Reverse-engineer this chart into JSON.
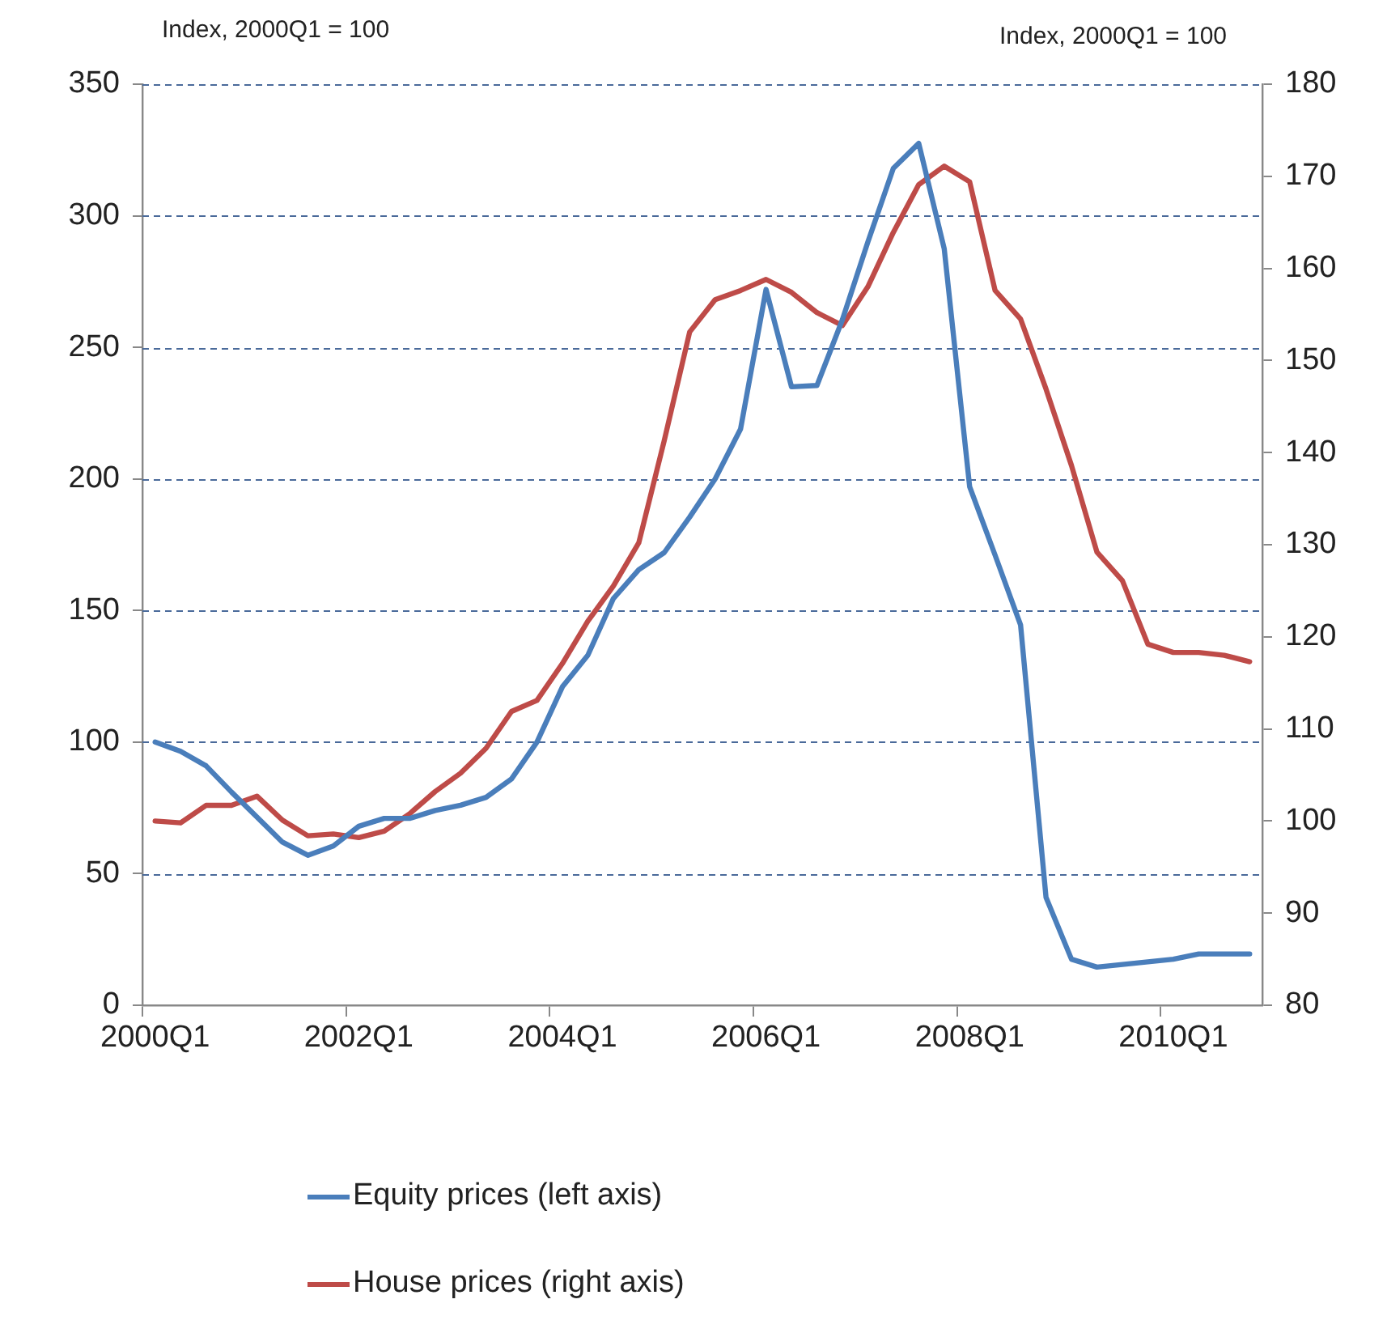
{
  "chart_data": {
    "type": "line",
    "ylabel": "Index, 2000Q1 = 100",
    "y2label": "Index, 2000Q1 = 100",
    "categories": [
      "2000Q1",
      null,
      null,
      null,
      null,
      null,
      null,
      null,
      "2002Q1",
      null,
      null,
      null,
      null,
      null,
      null,
      null,
      "2004Q1",
      null,
      null,
      null,
      null,
      null,
      null,
      null,
      "2006Q1",
      null,
      null,
      null,
      null,
      null,
      null,
      null,
      "2008Q1",
      null,
      null,
      null,
      null,
      null,
      null,
      null,
      "2010Q1",
      null,
      null,
      null
    ],
    "series": [
      {
        "name": "Equity prices (left axis)",
        "color": "#4a7ebb",
        "values": [
          100,
          96.5,
          91,
          81,
          71.5,
          62,
          57,
          60.5,
          68,
          71,
          71,
          74,
          76,
          79,
          86,
          100,
          121,
          133,
          154.5,
          165.5,
          172,
          185.5,
          200,
          219,
          272,
          235,
          235.5,
          260.5,
          290,
          318,
          327.5,
          287.5,
          197,
          171,
          144.5,
          41,
          17.5,
          14.5,
          15.5,
          16.5,
          17.5,
          19.5,
          19.5,
          19.5
        ]
      },
      {
        "name": "House prices (right axis)",
        "color": "#be4b48",
        "axis": "y2",
        "values": [
          100,
          99.8,
          101.7,
          101.7,
          102.7,
          100.1,
          98.4,
          98.6,
          98.2,
          98.9,
          100.8,
          103.2,
          105.2,
          107.9,
          111.9,
          113.1,
          117.1,
          121.7,
          125.5,
          130.2,
          141.3,
          153.1,
          156.6,
          157.6,
          158.8,
          157.4,
          155.2,
          153.8,
          158,
          163.9,
          169.1,
          171.1,
          169.4,
          157.6,
          154.5,
          146.9,
          138.6,
          129.2,
          126.1,
          119.2,
          118.3,
          118.3,
          118,
          117.3
        ]
      }
    ],
    "ylim": [
      0,
      350
    ],
    "yticks": [
      0,
      50,
      100,
      150,
      200,
      250,
      300,
      350
    ],
    "y2lim": [
      80,
      180
    ],
    "y2ticks": [
      80,
      90,
      100,
      110,
      120,
      130,
      140,
      150,
      160,
      170,
      180
    ],
    "grid": "y",
    "legend": "bottom",
    "marker": "none",
    "line_style": "solid"
  }
}
